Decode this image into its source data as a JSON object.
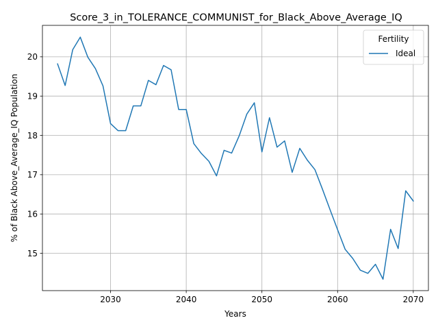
{
  "chart_data": {
    "type": "line",
    "title": "Score_3_in_TOLERANCE_COMMUNIST_for_Black_Above_Average_IQ",
    "xlabel": "Years",
    "ylabel": "% of Black Above_Average_IQ Population",
    "xlim": [
      2021,
      2072
    ],
    "ylim": [
      14.05,
      20.8
    ],
    "xticks": [
      2030,
      2040,
      2050,
      2060,
      2070
    ],
    "yticks": [
      15,
      16,
      17,
      18,
      19,
      20
    ],
    "grid": true,
    "legend": {
      "title": "Fertility",
      "position": "top-right"
    },
    "series": [
      {
        "name": "Ideal",
        "color": "#1f77b4",
        "x": [
          2023,
          2024,
          2025,
          2026,
          2027,
          2028,
          2029,
          2030,
          2031,
          2032,
          2033,
          2034,
          2035,
          2036,
          2037,
          2038,
          2039,
          2040,
          2041,
          2042,
          2043,
          2044,
          2045,
          2046,
          2047,
          2048,
          2049,
          2050,
          2051,
          2052,
          2053,
          2054,
          2055,
          2056,
          2057,
          2058,
          2059,
          2060,
          2061,
          2062,
          2063,
          2064,
          2065,
          2066,
          2067,
          2068,
          2069,
          2070
        ],
        "values": [
          19.82,
          19.27,
          20.18,
          20.5,
          19.99,
          19.7,
          19.26,
          18.3,
          18.12,
          18.12,
          18.75,
          18.75,
          19.4,
          19.29,
          19.78,
          19.67,
          18.66,
          18.66,
          17.79,
          17.54,
          17.34,
          16.97,
          17.62,
          17.55,
          17.99,
          18.54,
          18.83,
          17.58,
          18.45,
          17.7,
          17.86,
          17.06,
          17.67,
          17.37,
          17.13,
          16.63,
          16.11,
          15.6,
          15.1,
          14.87,
          14.57,
          14.49,
          14.72,
          14.34,
          15.61,
          15.12,
          16.59,
          16.33
        ]
      }
    ]
  }
}
